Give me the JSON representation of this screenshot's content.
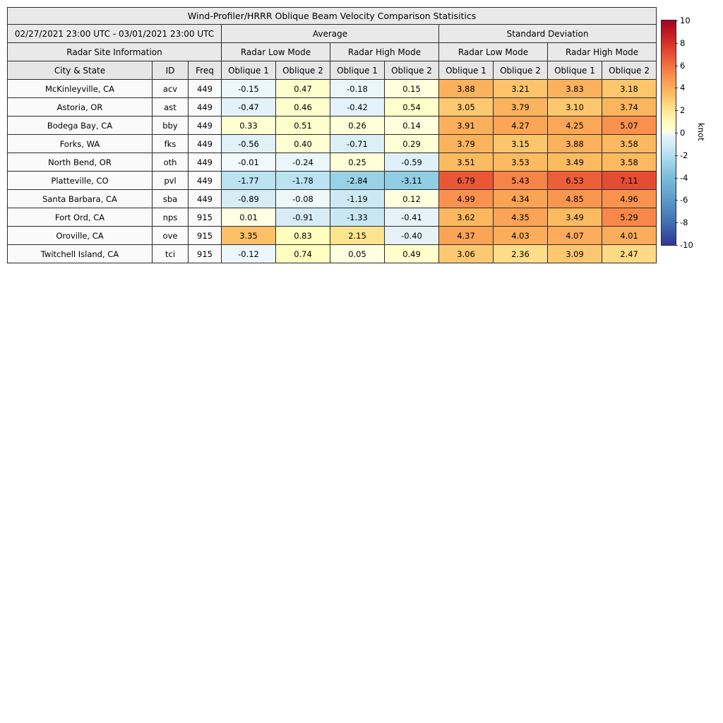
{
  "chart_data": {
    "type": "table",
    "title": "Wind-Profiler/HRRR Oblique Beam Velocity Comparison Statisitics",
    "date_range": "02/27/2021 23:00 UTC - 03/01/2021 23:00 UTC",
    "group_headers": [
      "Average",
      "Standard Deviation"
    ],
    "site_info_header": "Radar Site Information",
    "mode_headers": [
      "Radar Low Mode",
      "Radar High Mode",
      "Radar Low Mode",
      "Radar High Mode"
    ],
    "columns": [
      "City & State",
      "ID",
      "Freq",
      "Oblique 1",
      "Oblique 2",
      "Oblique 1",
      "Oblique 2",
      "Oblique 1",
      "Oblique 2",
      "Oblique 1",
      "Oblique 2"
    ],
    "rows": [
      {
        "city": "McKinleyville, CA",
        "id": "acv",
        "freq": "449",
        "values": [
          -0.15,
          0.47,
          -0.18,
          0.15,
          3.88,
          3.21,
          3.83,
          3.18
        ]
      },
      {
        "city": "Astoria, OR",
        "id": "ast",
        "freq": "449",
        "values": [
          -0.47,
          0.46,
          -0.42,
          0.54,
          3.05,
          3.79,
          3.1,
          3.74
        ]
      },
      {
        "city": "Bodega Bay, CA",
        "id": "bby",
        "freq": "449",
        "values": [
          0.33,
          0.51,
          0.26,
          0.14,
          3.91,
          4.27,
          4.25,
          5.07
        ]
      },
      {
        "city": "Forks, WA",
        "id": "fks",
        "freq": "449",
        "values": [
          -0.56,
          0.4,
          -0.71,
          0.29,
          3.79,
          3.15,
          3.88,
          3.58
        ]
      },
      {
        "city": "North Bend, OR",
        "id": "oth",
        "freq": "449",
        "values": [
          -0.01,
          -0.24,
          0.25,
          -0.59,
          3.51,
          3.53,
          3.49,
          3.58
        ]
      },
      {
        "city": "Platteville, CO",
        "id": "pvl",
        "freq": "449",
        "values": [
          -1.77,
          -1.78,
          -2.84,
          -3.11,
          6.79,
          5.43,
          6.53,
          7.11
        ]
      },
      {
        "city": "Santa Barbara, CA",
        "id": "sba",
        "freq": "449",
        "values": [
          -0.89,
          -0.08,
          -1.19,
          0.12,
          4.99,
          4.34,
          4.85,
          4.96
        ]
      },
      {
        "city": "Fort Ord, CA",
        "id": "nps",
        "freq": "915",
        "values": [
          0.01,
          -0.91,
          -1.33,
          -0.41,
          3.62,
          4.35,
          3.49,
          5.29
        ]
      },
      {
        "city": "Oroville, CA",
        "id": "ove",
        "freq": "915",
        "values": [
          3.35,
          0.83,
          2.15,
          -0.4,
          4.37,
          4.03,
          4.07,
          4.01
        ]
      },
      {
        "city": "Twitchell Island, CA",
        "id": "tci",
        "freq": "915",
        "values": [
          -0.12,
          0.74,
          0.05,
          0.49,
          3.06,
          2.36,
          3.09,
          2.47
        ]
      }
    ],
    "value_format_decimals": 2,
    "colorbar": {
      "label": "knot",
      "ticks": [
        10,
        8,
        6,
        4,
        2,
        0,
        -2,
        -4,
        -6,
        -8,
        -10
      ],
      "min": -10,
      "max": 10
    },
    "colormap_stops": [
      [
        -10,
        "#313695"
      ],
      [
        -8,
        "#4070af"
      ],
      [
        -6,
        "#5b9bc7"
      ],
      [
        -4,
        "#79bcda"
      ],
      [
        -3,
        "#94cfe4"
      ],
      [
        -2,
        "#b4dff0"
      ],
      [
        -1,
        "#d4ebf5"
      ],
      [
        -0.001,
        "#f0f9fc"
      ],
      [
        0,
        "#ffffe5"
      ],
      [
        0.75,
        "#ffffbf"
      ],
      [
        2,
        "#fee894"
      ],
      [
        3.5,
        "#fdbb61"
      ],
      [
        5,
        "#f9924e"
      ],
      [
        6,
        "#f2703f"
      ],
      [
        7,
        "#e65134"
      ],
      [
        8,
        "#d73027"
      ],
      [
        10,
        "#a50026"
      ]
    ],
    "ylim": [
      -10,
      10
    ]
  }
}
